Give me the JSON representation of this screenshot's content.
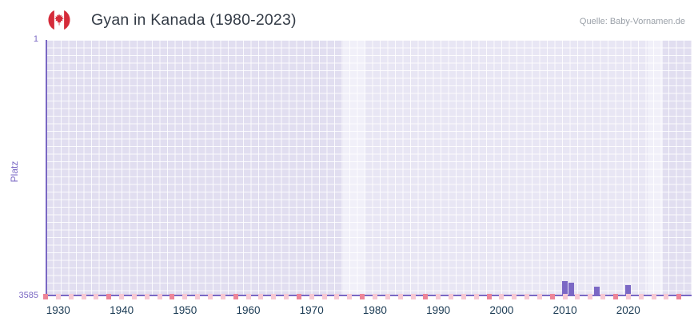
{
  "header": {
    "title": "Gyan in Kanada (1980-2023)",
    "source": "Quelle: Baby-Vornamen.de",
    "flag": "canada-flag-icon"
  },
  "chart_data": {
    "type": "bar",
    "title": "Gyan in Kanada (1980-2023)",
    "ylabel": "Platz",
    "xlabel": "",
    "y_domain": [
      1,
      3585
    ],
    "y_inverted": true,
    "x_domain": [
      1928,
      2030
    ],
    "x_ticks": [
      1930,
      1940,
      1950,
      1960,
      1970,
      1980,
      1990,
      2000,
      2010,
      2020
    ],
    "points": [
      {
        "year": 2010,
        "rank": 3370
      },
      {
        "year": 2011,
        "rank": 3395
      },
      {
        "year": 2015,
        "rank": 3450
      },
      {
        "year": 2020,
        "rank": 3430
      }
    ],
    "baseline_markers": {
      "start": 1928,
      "end": 2028,
      "step": 2,
      "strong_every": 10
    },
    "highlight_bands": [
      {
        "from": 1975,
        "to": 1978.5
      },
      {
        "from": 2023,
        "to": 2025.5
      }
    ],
    "shaded_regions": [
      {
        "from": 1928,
        "to": 1975
      },
      {
        "from": 2025.5,
        "to": 2030
      }
    ],
    "grid": true,
    "legend": false,
    "colors": {
      "bar": "#7b68c5",
      "axis": "#7a68c4",
      "plot_bg": "#e8e6f4",
      "shade": "#e1def0",
      "highlight": "#f1f0f9",
      "grid_line": "#ffffff",
      "marker_light": "#f7c9d3",
      "marker_strong": "#ed8598",
      "x_tick_color": "#1c3c55",
      "flag_red": "#d52b3a"
    }
  }
}
